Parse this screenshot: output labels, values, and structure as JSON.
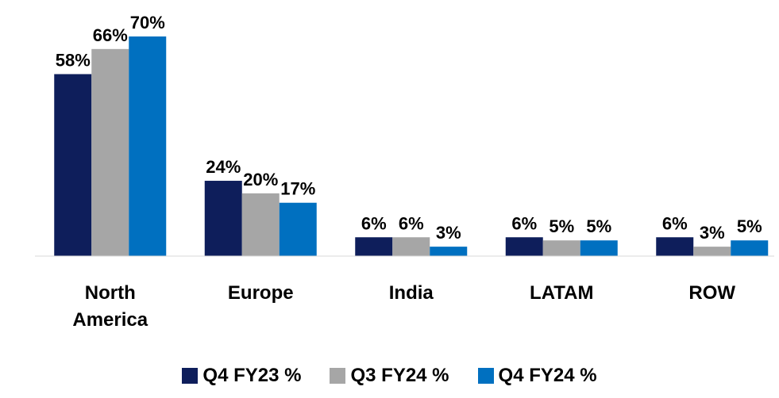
{
  "chart_data": {
    "type": "bar",
    "categories": [
      "North America",
      "Europe",
      "India",
      "LATAM",
      "ROW"
    ],
    "series": [
      {
        "name": "Q4 FY23 %",
        "color": "#0e1e5b",
        "values": [
          58,
          24,
          6,
          6,
          6
        ],
        "value_labels": [
          "58%",
          "24%",
          "6%",
          "6%",
          "6%"
        ]
      },
      {
        "name": "Q3 FY24 %",
        "color": "#a6a6a6",
        "values": [
          66,
          20,
          6,
          5,
          3
        ],
        "value_labels": [
          "66%",
          "20%",
          "6%",
          "5%",
          "3%"
        ]
      },
      {
        "name": "Q4 FY24 %",
        "color": "#0070c0",
        "values": [
          70,
          17,
          3,
          5,
          5
        ],
        "value_labels": [
          "70%",
          "17%",
          "3%",
          "5%",
          "5%"
        ]
      }
    ],
    "ylim": [
      0,
      70
    ],
    "legend": "bottom"
  }
}
